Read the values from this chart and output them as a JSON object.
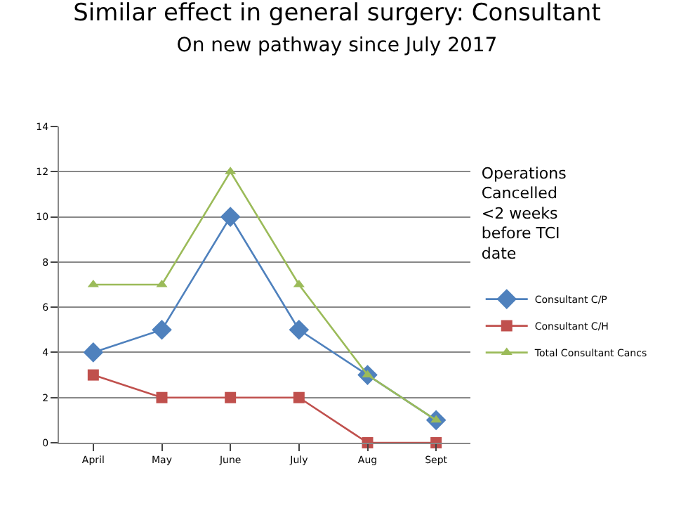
{
  "chart_data": {
    "type": "line",
    "title": "Similar effect in general surgery: Consultant",
    "subtitle": "On new pathway since July 2017",
    "legend_title": "Operations Cancelled <2 weeks before TCI date",
    "categories": [
      "April",
      "May",
      "June",
      "July",
      "Aug",
      "Sept"
    ],
    "series": [
      {
        "name": "Consultant C/P",
        "color": "#4f81bd",
        "marker": "diamond",
        "values": [
          4,
          5,
          10,
          5,
          3,
          1
        ]
      },
      {
        "name": "Consultant C/H",
        "color": "#c0504d",
        "marker": "square",
        "values": [
          3,
          2,
          2,
          2,
          0,
          0
        ]
      },
      {
        "name": "Total Consultant Cancs",
        "color": "#9bbb59",
        "marker": "triangle",
        "values": [
          7,
          7,
          12,
          7,
          3,
          1
        ]
      }
    ],
    "ylim": [
      0,
      14
    ],
    "yticks": [
      0,
      2,
      4,
      6,
      8,
      10,
      12,
      14
    ],
    "grid": "y",
    "legend": "right",
    "line_style": "solid"
  }
}
